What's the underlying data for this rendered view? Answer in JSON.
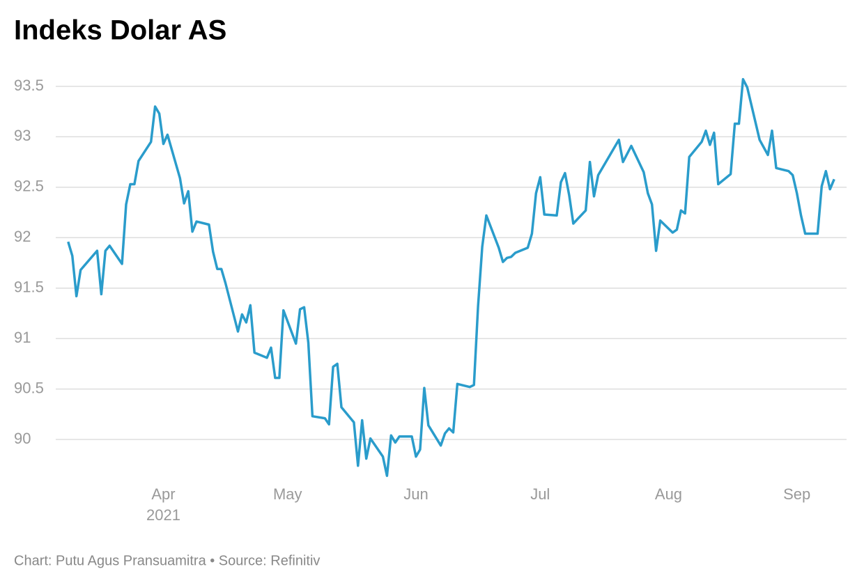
{
  "chart_data": {
    "type": "line",
    "title": "Indeks Dolar AS",
    "source": "Chart: Putu Agus Pransuamitra • Source: Refinitiv",
    "x_sublabel": "2021",
    "color": "#2a9ccb",
    "grid": true,
    "xlim": [
      65,
      256
    ],
    "xticks": [
      {
        "value": 91,
        "label": "Apr"
      },
      {
        "value": 121,
        "label": "May"
      },
      {
        "value": 152,
        "label": "Jun"
      },
      {
        "value": 182,
        "label": "Jul"
      },
      {
        "value": 213,
        "label": "Aug"
      },
      {
        "value": 244,
        "label": "Sep"
      }
    ],
    "ylim": [
      89.55,
      93.6
    ],
    "yticks": [
      90,
      90.5,
      91,
      91.5,
      92,
      92.5,
      93,
      93.5
    ],
    "x": [
      68,
      69,
      70,
      71,
      75,
      76,
      77,
      78,
      81,
      82,
      83,
      84,
      85,
      88,
      89,
      90,
      91,
      92,
      95,
      96,
      97,
      98,
      99,
      102,
      103,
      104,
      105,
      106,
      109,
      110,
      111,
      112,
      113,
      116,
      117,
      118,
      119,
      120,
      123,
      124,
      125,
      126,
      127,
      130,
      131,
      132,
      133,
      134,
      137,
      138,
      139,
      140,
      141,
      144,
      145,
      146,
      147,
      148,
      151,
      152,
      153,
      154,
      155,
      158,
      159,
      160,
      161,
      162,
      165,
      166,
      167,
      168,
      169,
      172,
      173,
      174,
      175,
      176,
      179,
      180,
      181,
      182,
      183,
      186,
      187,
      188,
      189,
      190,
      193,
      194,
      195,
      196,
      201,
      202,
      204,
      207,
      208,
      209,
      210,
      211,
      214,
      215,
      216,
      217,
      218,
      221,
      222,
      223,
      224,
      225,
      228,
      229,
      230,
      231,
      232,
      235,
      237,
      238,
      239,
      242,
      243,
      244,
      245,
      246,
      249,
      250,
      251,
      252,
      253
    ],
    "values": [
      91.96,
      91.82,
      91.42,
      91.68,
      91.87,
      91.44,
      91.87,
      91.92,
      91.74,
      92.33,
      92.53,
      92.53,
      92.76,
      92.95,
      93.3,
      93.23,
      92.93,
      93.02,
      92.59,
      92.34,
      92.46,
      92.06,
      92.16,
      92.13,
      91.86,
      91.69,
      91.69,
      91.55,
      91.07,
      91.24,
      91.16,
      91.33,
      90.86,
      90.81,
      90.91,
      90.61,
      90.61,
      91.28,
      90.95,
      91.29,
      91.31,
      90.96,
      90.23,
      90.21,
      90.15,
      90.72,
      90.75,
      90.32,
      90.17,
      89.74,
      90.19,
      89.81,
      90.01,
      89.83,
      89.64,
      90.04,
      89.97,
      90.03,
      90.03,
      89.83,
      89.9,
      90.51,
      90.14,
      89.94,
      90.06,
      90.11,
      90.07,
      90.55,
      90.52,
      90.54,
      91.32,
      91.91,
      92.22,
      91.9,
      91.76,
      91.8,
      91.81,
      91.85,
      91.9,
      92.04,
      92.44,
      92.6,
      92.23,
      92.22,
      92.55,
      92.64,
      92.42,
      92.14,
      92.27,
      92.75,
      92.41,
      92.62,
      92.97,
      92.75,
      92.91,
      92.65,
      92.44,
      92.33,
      91.87,
      92.17,
      92.05,
      92.08,
      92.27,
      92.24,
      92.8,
      92.95,
      93.06,
      92.92,
      93.04,
      92.53,
      92.63,
      93.13,
      93.13,
      93.57,
      93.49,
      92.97,
      92.82,
      93.06,
      92.69,
      92.66,
      92.62,
      92.44,
      92.22,
      92.04,
      92.04,
      92.51,
      92.66,
      92.48,
      92.58
    ]
  }
}
